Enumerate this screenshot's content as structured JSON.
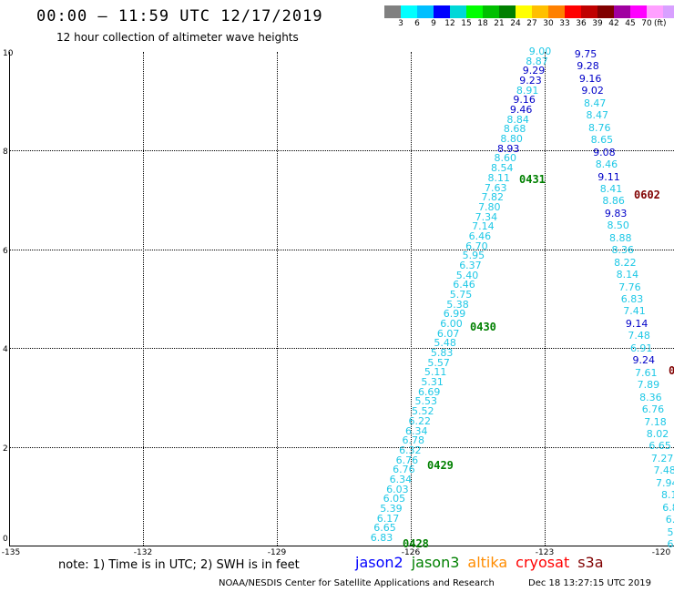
{
  "header": {
    "title": "00:00 – 11:59 UTC 12/17/2019",
    "subtitle": "12 hour collection of altimeter wave heights"
  },
  "legend": {
    "colors": [
      "#808080",
      "#00ffff",
      "#00bfff",
      "#0000ff",
      "#00d8d8",
      "#00ff00",
      "#00c000",
      "#008000",
      "#ffff00",
      "#ffc000",
      "#ff8000",
      "#ff0000",
      "#c00000",
      "#800000",
      "#a000a0",
      "#ff00ff",
      "#ffa0ff",
      "#d8a0ff",
      "#000000"
    ],
    "ticks": [
      "3",
      "6",
      "9",
      "12",
      "15",
      "18",
      "21",
      "24",
      "27",
      "30",
      "33",
      "36",
      "39",
      "42",
      "45",
      "70"
    ],
    "unit": "(ft)"
  },
  "axes": {
    "x_ticks": [
      "-135",
      "-132",
      "-129",
      "-126",
      "-123",
      "-120"
    ],
    "y_ticks": [
      "0",
      "2",
      "4",
      "6",
      "8",
      "10"
    ]
  },
  "track_a": {
    "color": "#1ec8e6",
    "values": [
      "9.00",
      "8.87",
      "9.29",
      "9.23",
      "8.91",
      "9.16",
      "9.46",
      "8.84",
      "8.68",
      "8.80",
      "8.93",
      "8.60",
      "8.54",
      "8.11",
      "7.63",
      "7.82",
      "7.80",
      "7.34",
      "7.14",
      "6.46",
      "6.70",
      "5.95",
      "6.37",
      "5.40",
      "6.46",
      "5.75",
      "5.38",
      "6.99",
      "6.00",
      "6.07",
      "5.48",
      "5.83",
      "5.57",
      "5.11",
      "5.31",
      "6.69",
      "5.53",
      "5.52",
      "6.22",
      "6.34",
      "6.78",
      "6.32",
      "6.76",
      "6.76",
      "6.34",
      "6.03",
      "6.05",
      "5.39",
      "6.17",
      "6.65",
      "6.83"
    ],
    "colors": [
      "#1ec8e6",
      "#1ec8e6",
      "#0000c8",
      "#0000c8",
      "#1ec8e6",
      "#0000c8",
      "#0000c8",
      "#1ec8e6",
      "#1ec8e6",
      "#1ec8e6",
      "#0000c8",
      "#1ec8e6",
      "#1ec8e6",
      "#1ec8e6",
      "#1ec8e6",
      "#1ec8e6",
      "#1ec8e6",
      "#1ec8e6",
      "#1ec8e6",
      "#1ec8e6",
      "#1ec8e6",
      "#1ec8e6",
      "#1ec8e6",
      "#1ec8e6",
      "#1ec8e6",
      "#1ec8e6",
      "#1ec8e6",
      "#1ec8e6",
      "#1ec8e6",
      "#1ec8e6",
      "#1ec8e6",
      "#1ec8e6",
      "#1ec8e6",
      "#1ec8e6",
      "#1ec8e6",
      "#1ec8e6",
      "#1ec8e6",
      "#1ec8e6",
      "#1ec8e6",
      "#1ec8e6",
      "#1ec8e6",
      "#1ec8e6",
      "#1ec8e6",
      "#1ec8e6",
      "#1ec8e6",
      "#1ec8e6",
      "#1ec8e6",
      "#1ec8e6",
      "#1ec8e6",
      "#1ec8e6",
      "#1ec8e6"
    ]
  },
  "track_b": {
    "values": [
      "9.75",
      "9.28",
      "9.16",
      "9.02",
      "8.47",
      "8.47",
      "8.76",
      "8.65",
      "9.08",
      "8.46",
      "9.11",
      "8.41",
      "8.86",
      "9.83",
      "8.50",
      "8.88",
      "8.36",
      "8.22",
      "8.14",
      "7.76",
      "6.83",
      "7.41",
      "9.14",
      "7.48",
      "6.91",
      "9.24",
      "7.61",
      "7.89",
      "8.36",
      "6.76",
      "7.18",
      "8.02",
      "6.65",
      "7.27",
      "7.48",
      "7.94",
      "8.1",
      "6.8",
      "6.",
      "5",
      "6"
    ],
    "colors": [
      "#0000c8",
      "#0000c8",
      "#0000c8",
      "#0000c8",
      "#1ec8e6",
      "#1ec8e6",
      "#1ec8e6",
      "#1ec8e6",
      "#0000c8",
      "#1ec8e6",
      "#0000c8",
      "#1ec8e6",
      "#1ec8e6",
      "#0000c8",
      "#1ec8e6",
      "#1ec8e6",
      "#1ec8e6",
      "#1ec8e6",
      "#1ec8e6",
      "#1ec8e6",
      "#1ec8e6",
      "#1ec8e6",
      "#0000c8",
      "#1ec8e6",
      "#1ec8e6",
      "#0000c8",
      "#1ec8e6",
      "#1ec8e6",
      "#1ec8e6",
      "#1ec8e6",
      "#1ec8e6",
      "#1ec8e6",
      "#1ec8e6",
      "#1ec8e6",
      "#1ec8e6",
      "#1ec8e6",
      "#1ec8e6",
      "#1ec8e6",
      "#1ec8e6",
      "#1ec8e6",
      "#1ec8e6"
    ]
  },
  "time_labels": [
    {
      "text": "0431",
      "color": "#008000"
    },
    {
      "text": "0430",
      "color": "#008000"
    },
    {
      "text": "0429",
      "color": "#008000"
    },
    {
      "text": "0428",
      "color": "#008000"
    },
    {
      "text": "0602",
      "color": "#800000"
    },
    {
      "text": "0",
      "color": "#800000"
    }
  ],
  "footer": {
    "note": "note: 1) Time is in UTC; 2) SWH is in feet",
    "satellites": [
      {
        "name": "jason2",
        "color": "#0000ff"
      },
      {
        "name": "jason3",
        "color": "#008000"
      },
      {
        "name": "altika",
        "color": "#ff8c00"
      },
      {
        "name": "cryosat",
        "color": "#ff0000"
      },
      {
        "name": "s3a",
        "color": "#800000"
      }
    ],
    "credit": "NOAA/NESDIS Center for Satellite Applications and Research",
    "timestamp": "Dec 18 13:27:15 UTC 2019"
  }
}
